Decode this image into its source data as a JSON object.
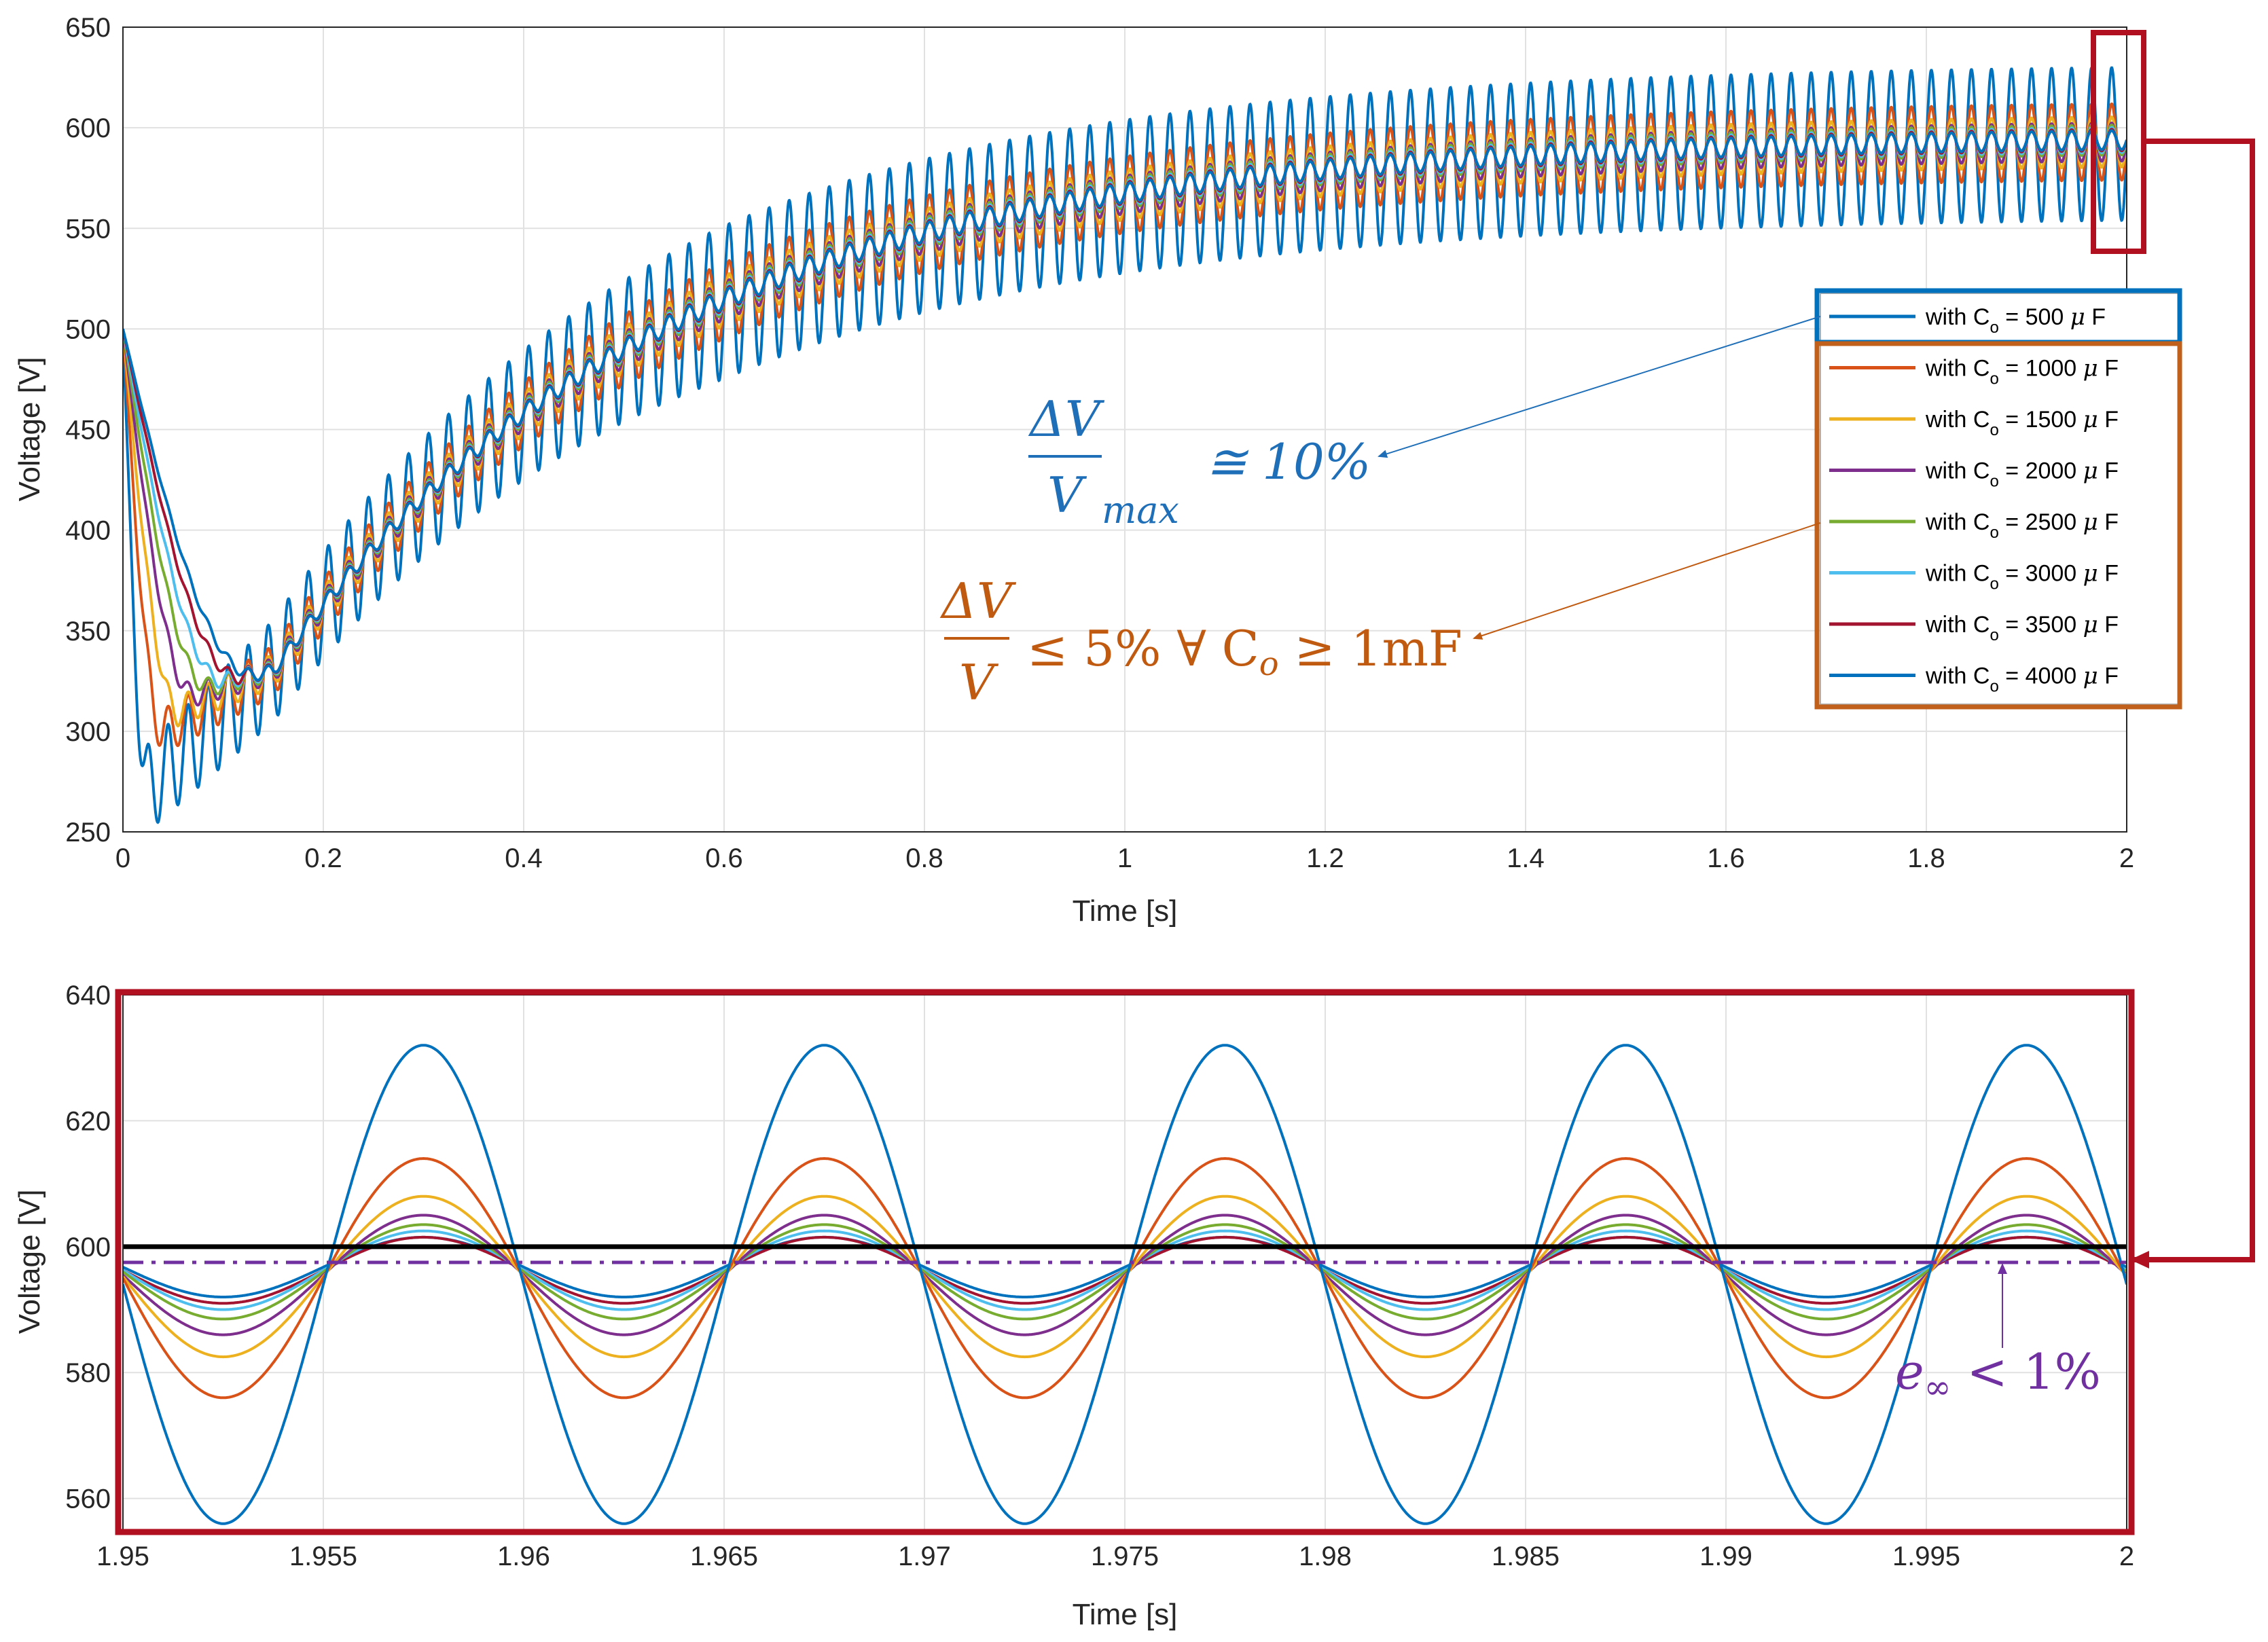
{
  "colors": {
    "series": [
      "#0072BD",
      "#D95319",
      "#EDB120",
      "#7E2F8E",
      "#77AC30",
      "#4DBEEE",
      "#A2142F",
      "#0072BD"
    ],
    "highlight_red": "#B01020",
    "legend_blue_box": "#0072BD",
    "legend_orange_box": "#C0601A",
    "annotation_blue": "#1F6FB8",
    "annotation_orange": "#C05A10",
    "annotation_purple": "#7030A0",
    "reference_line": "#000000",
    "grid": "#e1e1e1"
  },
  "legend": {
    "prefix": "with C",
    "subscript": "o",
    "mu": "μ",
    "unit": "F",
    "entries": [
      {
        "eq": " = 500 ",
        "series": 0
      },
      {
        "eq": " = 1000 ",
        "series": 1
      },
      {
        "eq": " = 1500 ",
        "series": 2
      },
      {
        "eq": " = 2000 ",
        "series": 3
      },
      {
        "eq": " = 2500 ",
        "series": 4
      },
      {
        "eq": " = 3000 ",
        "series": 5
      },
      {
        "eq": " = 3500 ",
        "series": 6
      },
      {
        "eq": " = 4000 ",
        "series": 7
      }
    ]
  },
  "annotations": {
    "blue": {
      "numerator": "ΔV",
      "denominator": "V",
      "sub": "max",
      "rest": "≅ 10%"
    },
    "orange": {
      "numerator": "ΔV",
      "denominator": "V",
      "rest_pre": "≤ 5% ∀ C",
      "rest_sub": "o",
      "rest_post": " ≥ 1mF"
    },
    "purple": {
      "main": "e",
      "sub": "∞",
      "rest": " < 1%"
    }
  },
  "chart_data": [
    {
      "type": "line",
      "title": "",
      "xlabel": "Time [s]",
      "ylabel": "Voltage [V]",
      "xlim": [
        0,
        2
      ],
      "ylim": [
        250,
        650
      ],
      "xticks": [
        0,
        0.2,
        0.4,
        0.6,
        0.8,
        1,
        1.2,
        1.4,
        1.6,
        1.8,
        2
      ],
      "xtick_labels": [
        "0",
        "0.2",
        "0.4",
        "0.6",
        "0.8",
        "1",
        "1.2",
        "1.4",
        "1.6",
        "1.8",
        "2"
      ],
      "yticks": [
        250,
        300,
        350,
        400,
        450,
        500,
        550,
        600,
        650
      ],
      "ytick_labels": [
        "250",
        "300",
        "350",
        "400",
        "450",
        "500",
        "550",
        "600",
        "650"
      ],
      "grid": true,
      "legend_position": "right",
      "series": [
        {
          "name": "with Co = 500 μF",
          "capacitance_uF": 500,
          "initial_V": 500,
          "min_V": 272,
          "min_t": 0.025,
          "final_mean_V": 594,
          "ripple_amp_V": 38
        },
        {
          "name": "with Co = 1000 μF",
          "capacitance_uF": 1000,
          "initial_V": 500,
          "min_V": 300,
          "min_t": 0.04,
          "final_mean_V": 595,
          "ripple_amp_V": 19
        },
        {
          "name": "with Co = 1500 μF",
          "capacitance_uF": 1500,
          "initial_V": 500,
          "min_V": 310,
          "min_t": 0.055,
          "final_mean_V": 595,
          "ripple_amp_V": 12.5
        },
        {
          "name": "with Co = 2000 μF",
          "capacitance_uF": 2000,
          "initial_V": 500,
          "min_V": 318,
          "min_t": 0.07,
          "final_mean_V": 595,
          "ripple_amp_V": 9.5
        },
        {
          "name": "with Co = 2500 μF",
          "capacitance_uF": 2500,
          "initial_V": 500,
          "min_V": 322,
          "min_t": 0.085,
          "final_mean_V": 596,
          "ripple_amp_V": 7.5
        },
        {
          "name": "with Co = 3000 μF",
          "capacitance_uF": 3000,
          "initial_V": 500,
          "min_V": 325,
          "min_t": 0.1,
          "final_mean_V": 596,
          "ripple_amp_V": 6.3
        },
        {
          "name": "with Co = 3500 μF",
          "capacitance_uF": 3500,
          "initial_V": 500,
          "min_V": 327,
          "min_t": 0.115,
          "final_mean_V": 596,
          "ripple_amp_V": 5.4
        },
        {
          "name": "with Co = 4000 μF",
          "capacitance_uF": 4000,
          "initial_V": 500,
          "min_V": 328,
          "min_t": 0.13,
          "final_mean_V": 596,
          "ripple_amp_V": 4.7
        }
      ]
    },
    {
      "type": "line",
      "title": "",
      "xlabel": "Time [s]",
      "ylabel": "Voltage [V]",
      "xlim": [
        1.95,
        2
      ],
      "ylim": [
        555,
        640
      ],
      "xticks": [
        1.95,
        1.955,
        1.96,
        1.965,
        1.97,
        1.975,
        1.98,
        1.985,
        1.99,
        1.995,
        2
      ],
      "xtick_labels": [
        "1.95",
        "1.955",
        "1.96",
        "1.965",
        "1.97",
        "1.975",
        "1.98",
        "1.985",
        "1.99",
        "1.995",
        "2"
      ],
      "yticks": [
        560,
        580,
        600,
        620,
        640
      ],
      "ytick_labels": [
        "560",
        "580",
        "600",
        "620",
        "640"
      ],
      "grid": true,
      "ripple_frequency_Hz": 100,
      "reference_line_V": 600,
      "dashdot_line_V": 597.5,
      "series": [
        {
          "capacitance_uF": 500,
          "max_V": 632,
          "min_V": 556
        },
        {
          "capacitance_uF": 1000,
          "max_V": 614,
          "min_V": 576
        },
        {
          "capacitance_uF": 1500,
          "max_V": 608,
          "min_V": 582.5
        },
        {
          "capacitance_uF": 2000,
          "max_V": 605,
          "min_V": 586
        },
        {
          "capacitance_uF": 2500,
          "max_V": 603.5,
          "min_V": 588.5
        },
        {
          "capacitance_uF": 3000,
          "max_V": 602.5,
          "min_V": 590
        },
        {
          "capacitance_uF": 3500,
          "max_V": 601.5,
          "min_V": 591
        },
        {
          "capacitance_uF": 4000,
          "max_V": 601.5,
          "min_V": 592
        }
      ]
    }
  ]
}
